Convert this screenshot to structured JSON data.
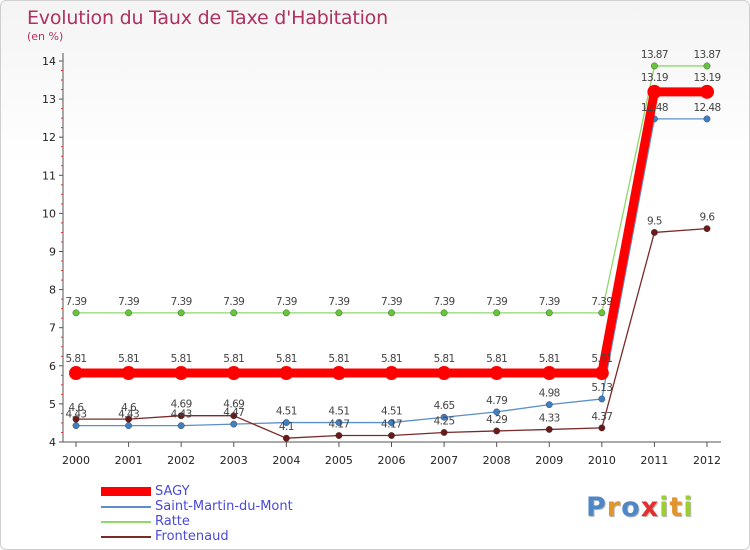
{
  "header": {
    "title": "Evolution du Taux de Taxe d'Habitation",
    "subtitle": "(en %)"
  },
  "logo": {
    "text": "Proxiti",
    "letter_colors": [
      "#4f86c6",
      "#e0962a",
      "#4f86c6",
      "#e03030",
      "#9ccf2e",
      "#e0962a",
      "#9ccf2e"
    ]
  },
  "chart_data": {
    "type": "line",
    "title": "Evolution du Taux de Taxe d'Habitation",
    "ylabel": "(en %)",
    "xlabel": "",
    "ylim": [
      4,
      14
    ],
    "yticks": [
      4,
      5,
      6,
      7,
      8,
      9,
      10,
      11,
      12,
      13,
      14
    ],
    "grid": false,
    "legend_position": "bottom-left",
    "x": [
      2000,
      2001,
      2002,
      2003,
      2004,
      2005,
      2006,
      2007,
      2008,
      2009,
      2010,
      2011,
      2012
    ],
    "series": [
      {
        "name": "Saint-Martin-du-Mont",
        "color": "#5b8fc7",
        "marker_color": "#3f7fc4",
        "values": [
          4.43,
          4.43,
          4.43,
          4.47,
          4.51,
          4.51,
          4.51,
          4.65,
          4.79,
          4.98,
          5.13,
          12.48,
          12.48
        ],
        "labels": [
          "4.43",
          "4.43",
          "4.43",
          "4.47",
          "4.51",
          "4.51",
          "4.51",
          "4.65",
          "4.79",
          "4.98",
          "5.13",
          "12.48",
          "12.48"
        ]
      },
      {
        "name": "Ratte",
        "color": "#8fd86a",
        "marker_color": "#66c63a",
        "values": [
          7.39,
          7.39,
          7.39,
          7.39,
          7.39,
          7.39,
          7.39,
          7.39,
          7.39,
          7.39,
          7.39,
          13.87,
          13.87
        ],
        "labels": [
          "7.39",
          "7.39",
          "7.39",
          "7.39",
          "7.39",
          "7.39",
          "7.39",
          "7.39",
          "7.39",
          "7.39",
          "7.39",
          "13.87",
          "13.87"
        ]
      },
      {
        "name": "Frontenaud",
        "color": "#7b2a2a",
        "marker_color": "#6a1a1a",
        "values": [
          4.6,
          4.6,
          4.69,
          4.69,
          4.1,
          4.17,
          4.17,
          4.25,
          4.29,
          4.33,
          4.37,
          9.5,
          9.6
        ],
        "labels": [
          "4.6",
          "4.6",
          "4.69",
          "4.69",
          "4.1",
          "4.17",
          "4.17",
          "4.25",
          "4.29",
          "4.33",
          "4.37",
          "9.5",
          "9.6"
        ]
      },
      {
        "name": "SAGY",
        "color": "#ff0000",
        "marker_color": "#ff0000",
        "emphasis": true,
        "values": [
          5.81,
          5.81,
          5.81,
          5.81,
          5.81,
          5.81,
          5.81,
          5.81,
          5.81,
          5.81,
          5.81,
          13.19,
          13.19
        ],
        "labels": [
          "5.81",
          "5.81",
          "5.81",
          "5.81",
          "5.81",
          "5.81",
          "5.81",
          "5.81",
          "5.81",
          "5.81",
          "5.81",
          "13.19",
          "13.19"
        ]
      }
    ],
    "legend": [
      "SAGY",
      "Saint-Martin-du-Mont",
      "Ratte",
      "Frontenaud"
    ]
  }
}
